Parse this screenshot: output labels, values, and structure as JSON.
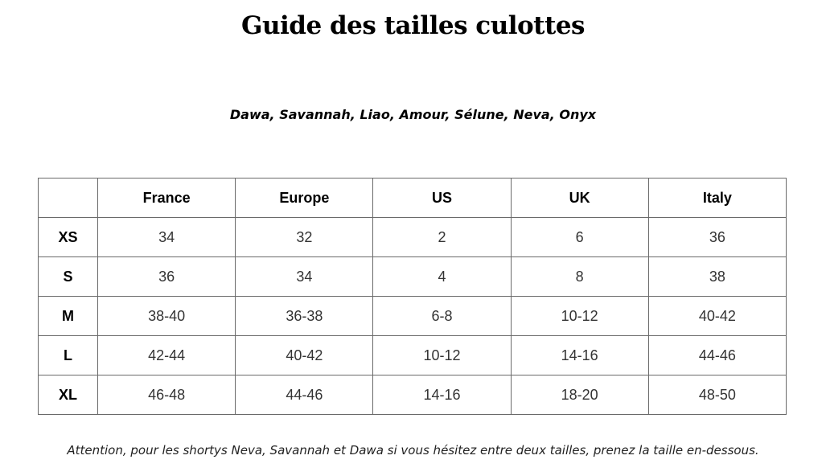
{
  "title": "Guide des tailles culottes",
  "subtitle": "Dawa, Savannah, Liao, Amour, Sélune, Neva, Onyx",
  "table": {
    "corner": "",
    "headers": [
      "France",
      "Europe",
      "US",
      "UK",
      "Italy"
    ],
    "rows": [
      {
        "size": "XS",
        "values": [
          "34",
          "32",
          "2",
          "6",
          "36"
        ]
      },
      {
        "size": "S",
        "values": [
          "36",
          "34",
          "4",
          "8",
          "38"
        ]
      },
      {
        "size": "M",
        "values": [
          "38-40",
          "36-38",
          "6-8",
          "10-12",
          "40-42"
        ]
      },
      {
        "size": "L",
        "values": [
          "42-44",
          "40-42",
          "10-12",
          "14-16",
          "44-46"
        ]
      },
      {
        "size": "XL",
        "values": [
          "46-48",
          "44-46",
          "14-16",
          "18-20",
          "48-50"
        ]
      }
    ]
  },
  "note": "Attention, pour les shortys Neva, Savannah et Dawa si vous hésitez entre deux tailles, prenez la taille en-dessous."
}
